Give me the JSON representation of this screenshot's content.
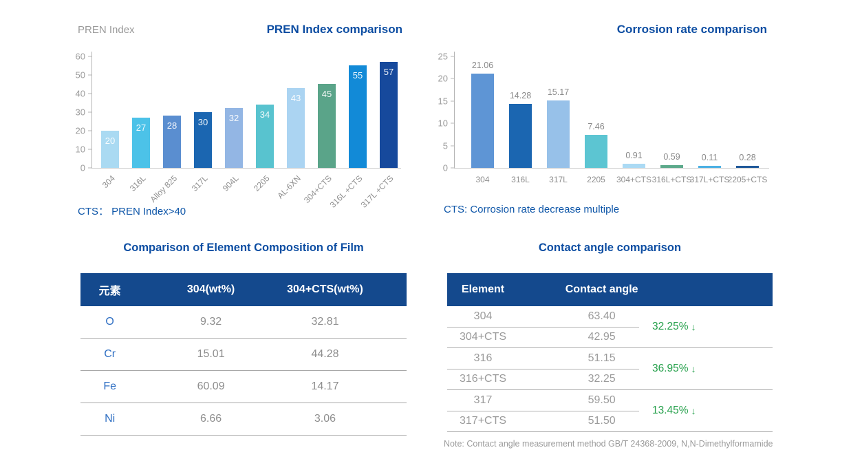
{
  "colors": {
    "title_blue": "#0c4da2",
    "note_blue": "#0e56a8",
    "table_header_navy": "#14498d",
    "element_name_blue": "#2f6fc3",
    "cell_gray": "#8e8e8e",
    "axis_gray": "#9c9c9c",
    "decrease_green": "#25a04b"
  },
  "chart_data": [
    {
      "id": "pren",
      "type": "bar",
      "title": "PREN Index comparison",
      "ylabel": "PREN Index",
      "xlabel": "",
      "categories": [
        "304",
        "316L",
        "Alloy 825",
        "317L",
        "904L",
        "2205",
        "AL-6XN",
        "304+CTS",
        "316L +CTS",
        "317L +CTS"
      ],
      "values": [
        20,
        27,
        28,
        30,
        32,
        34,
        43,
        45,
        55,
        57
      ],
      "colors": [
        "#aadaf2",
        "#4cc2e8",
        "#5a8ed0",
        "#1b66b1",
        "#93b6e4",
        "#58c3cf",
        "#abd4f2",
        "#5aa489",
        "#128ad7",
        "#16499c"
      ],
      "ylim": [
        0,
        60
      ],
      "yticks": [
        0,
        10,
        20,
        30,
        40,
        50,
        60
      ],
      "grid": false,
      "legend": false,
      "value_labels": "inside-top",
      "rotated_xlabels": true,
      "note": "CTS： PREN Index>40"
    },
    {
      "id": "corr",
      "type": "bar",
      "title": "Corrosion rate comparison",
      "ylabel": "",
      "xlabel": "",
      "categories": [
        "304",
        "316L",
        "317L",
        "2205",
        "304+CTS",
        "316L+CTS",
        "317L+CTS",
        "2205+CTS"
      ],
      "values": [
        21.06,
        14.28,
        15.17,
        7.46,
        0.91,
        0.59,
        0.11,
        0.28
      ],
      "colors": [
        "#5e95d5",
        "#1b66b1",
        "#97c1e9",
        "#5cc5d2",
        "#abdaf4",
        "#5ca98b",
        "#4cb0e3",
        "#1f5899"
      ],
      "ylim": [
        0,
        25
      ],
      "yticks": [
        0,
        5,
        10,
        15,
        20,
        25
      ],
      "grid": false,
      "legend": false,
      "value_labels": "above",
      "rotated_xlabels": false,
      "note": "CTS: Corrosion rate decrease multiple"
    }
  ],
  "tables": [
    {
      "title": "Comparison of Element Composition of Film",
      "headers": [
        "元素",
        "304(wt%)",
        "304+CTS(wt%)"
      ],
      "rows": [
        [
          "O",
          "9.32",
          "32.81"
        ],
        [
          "Cr",
          "15.01",
          "44.28"
        ],
        [
          "Fe",
          "60.09",
          "14.17"
        ],
        [
          "Ni",
          "6.66",
          "3.06"
        ]
      ]
    },
    {
      "title": "Contact angle comparison",
      "headers": [
        "Element",
        "Contact angle"
      ],
      "groups": [
        {
          "rows": [
            [
              "304",
              "63.40"
            ],
            [
              "304+CTS",
              "42.95"
            ]
          ],
          "change": "32.25%",
          "direction": "down"
        },
        {
          "rows": [
            [
              "316",
              "51.15"
            ],
            [
              "316+CTS",
              "32.25"
            ]
          ],
          "change": "36.95%",
          "direction": "down"
        },
        {
          "rows": [
            [
              "317",
              "59.50"
            ],
            [
              "317+CTS",
              "51.50"
            ]
          ],
          "change": "13.45%",
          "direction": "down"
        }
      ],
      "note": "Note: Contact angle measurement method GB/T 24368-2009, N,N-Dimethylformamide"
    }
  ]
}
